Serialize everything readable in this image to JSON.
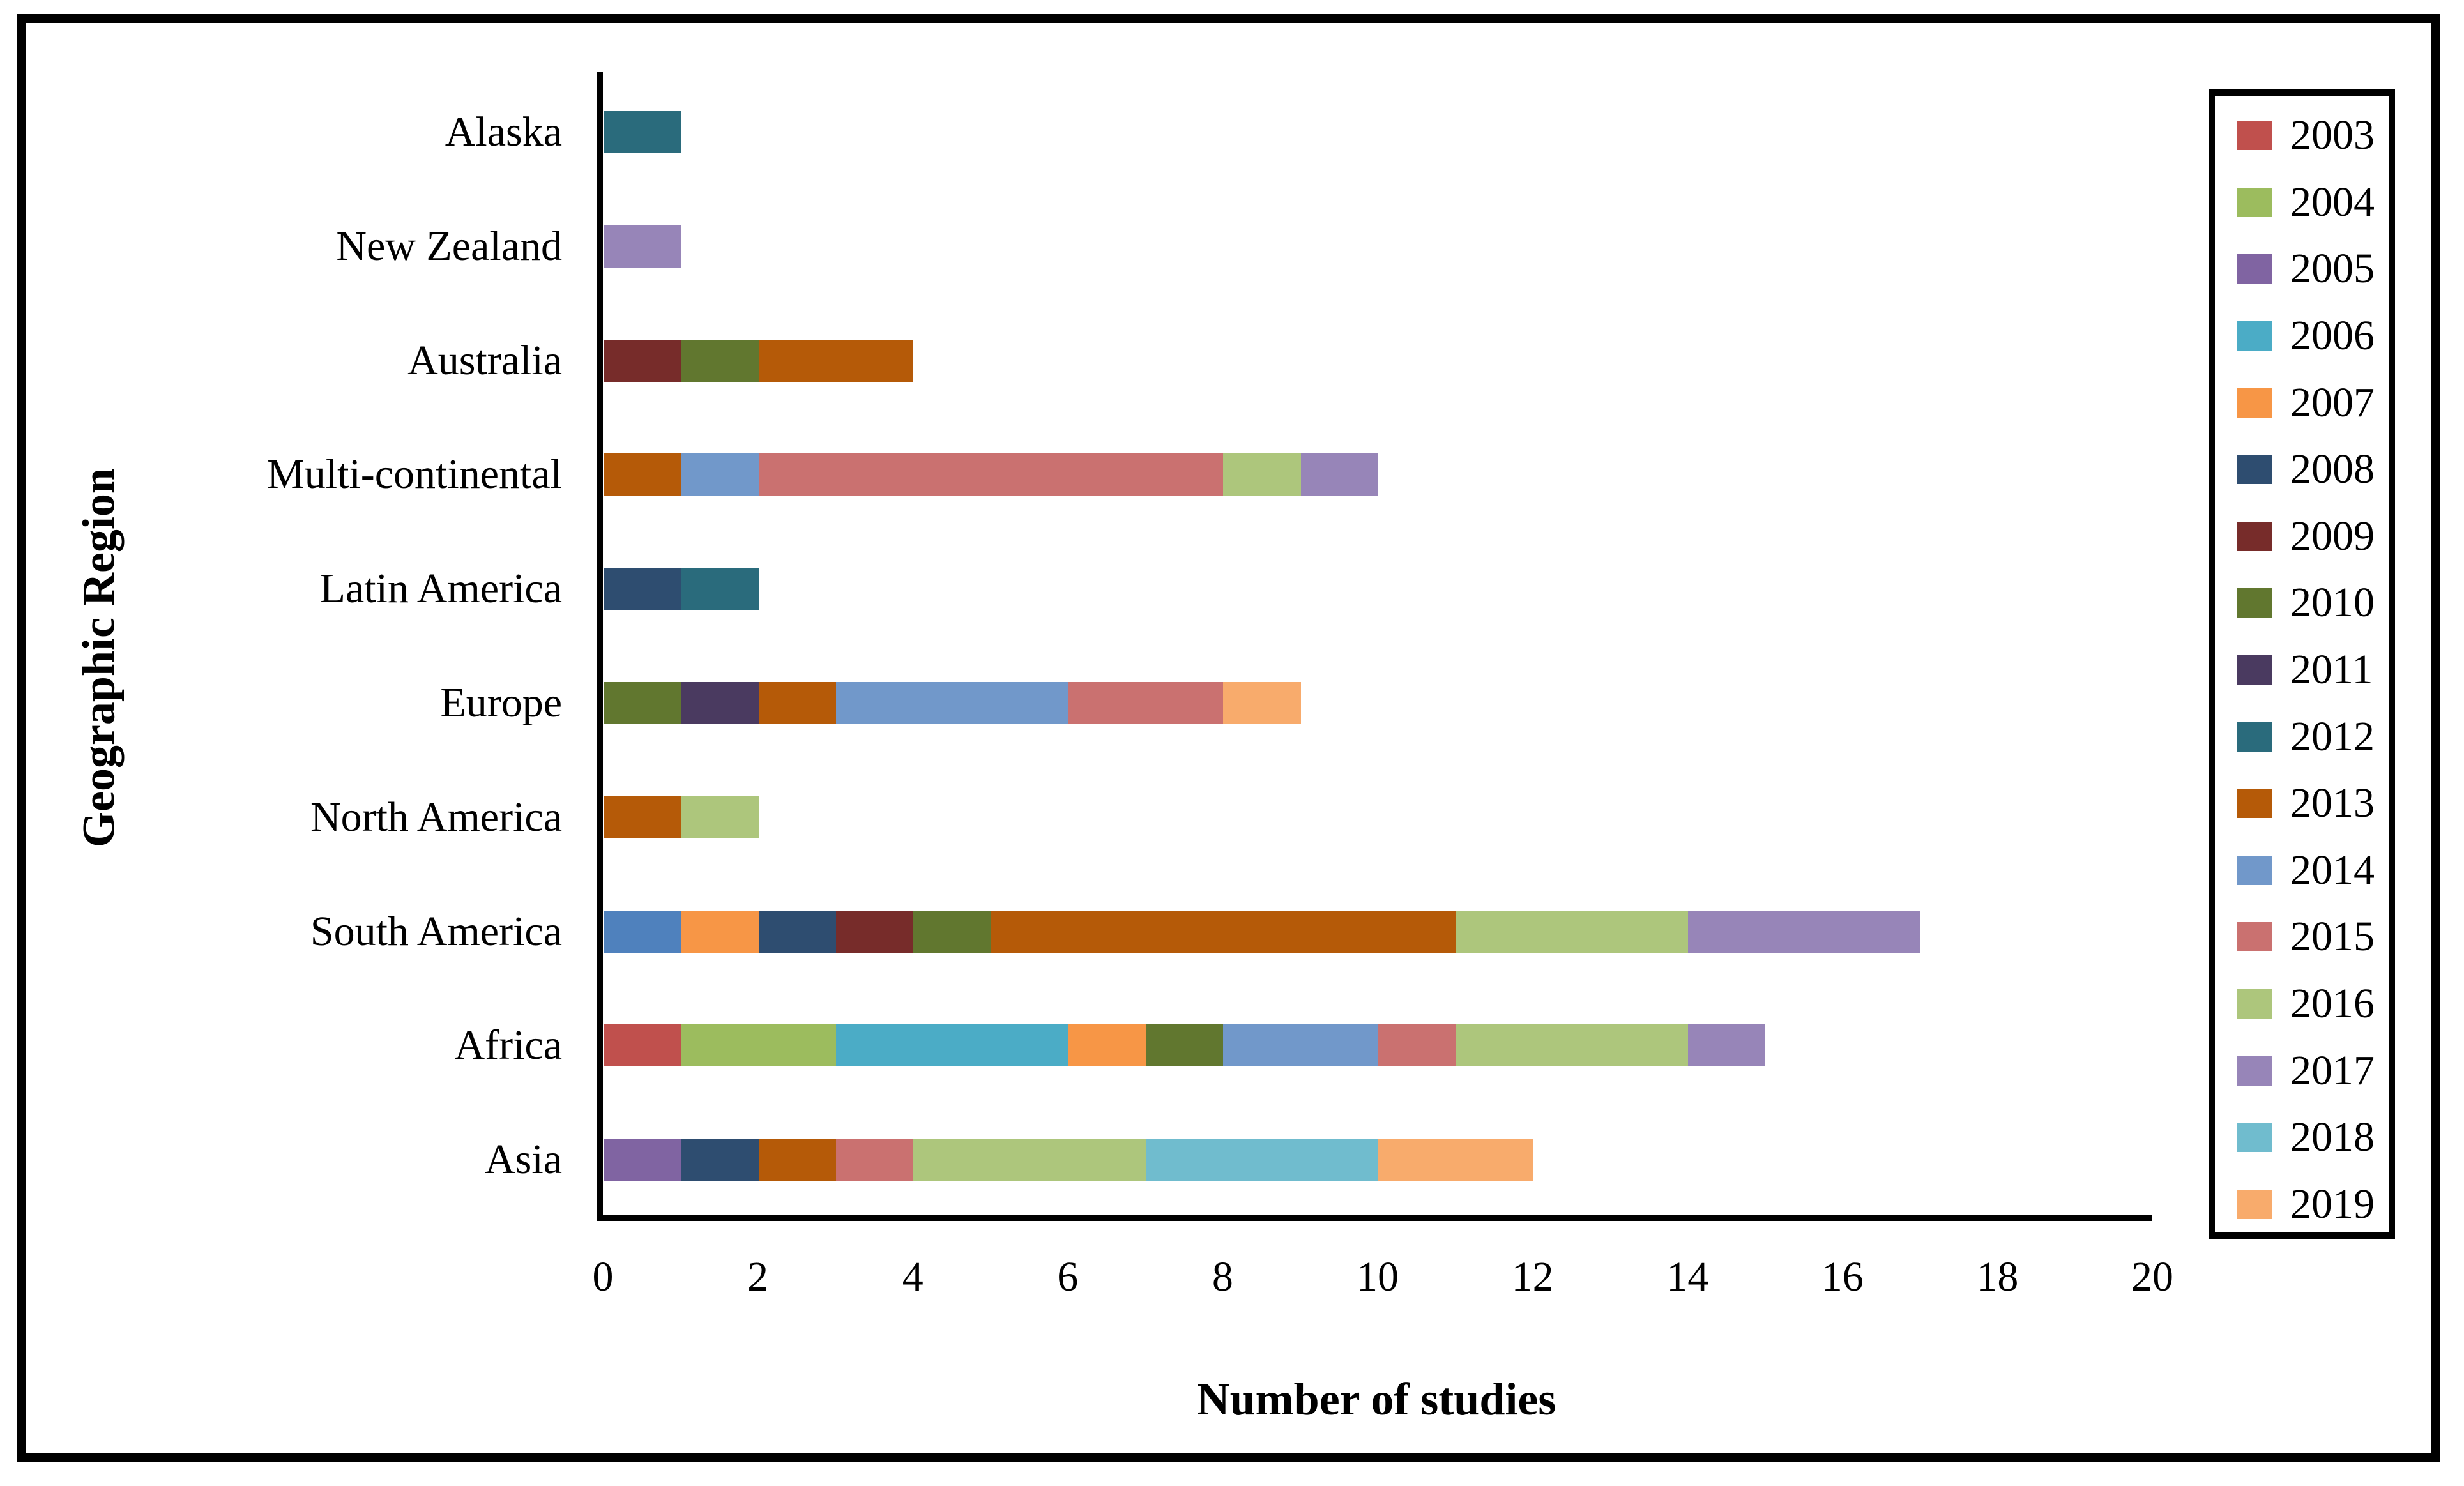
{
  "chart_data": {
    "type": "bar",
    "orientation": "horizontal",
    "stacked": true,
    "xlabel": "Number of studies",
    "ylabel": "Geographic Region",
    "xlim": [
      0,
      20
    ],
    "xticks": [
      0,
      2,
      4,
      6,
      8,
      10,
      12,
      14,
      16,
      18,
      20
    ],
    "grid": false,
    "legend_position": "right-outside-box",
    "legend_years": [
      "2003",
      "2004",
      "2005",
      "2006",
      "2007",
      "2008",
      "2009",
      "2010",
      "2011",
      "2012",
      "2013",
      "2014",
      "2015",
      "2016",
      "2017",
      "2018",
      "2019"
    ],
    "palette": {
      "2003": "#c0504d",
      "2004": "#9cbc5e",
      "2005": "#8064a2",
      "2006": "#4bacc6",
      "2007": "#f79646",
      "2008": "#2e4d70",
      "2009": "#772c2a",
      "2010": "#61772f",
      "2011": "#4a3a60",
      "2012": "#2a6b7c",
      "2013": "#b55a08",
      "2014": "#7198ca",
      "2015": "#ca7170",
      "2016": "#adc67c",
      "2017": "#9785b8",
      "2018": "#70bcce",
      "2019": "#f8ab6c"
    },
    "categories": [
      "Alaska",
      "New Zealand",
      "Australia",
      "Multi-continental",
      "Latin America",
      "Europe",
      "North America",
      "South America",
      "Africa",
      "Asia"
    ],
    "bars": [
      {
        "region": "Alaska",
        "total": 1,
        "segments": [
          {
            "year": "2012",
            "value": 1
          }
        ]
      },
      {
        "region": "New Zealand",
        "total": 1,
        "segments": [
          {
            "year": "2017",
            "value": 1
          }
        ]
      },
      {
        "region": "Australia",
        "total": 4,
        "segments": [
          {
            "year": "2009",
            "value": 1
          },
          {
            "year": "2010",
            "value": 1
          },
          {
            "year": "2013",
            "value": 2
          }
        ]
      },
      {
        "region": "Multi-continental",
        "total": 10,
        "segments": [
          {
            "year": "2013",
            "value": 1
          },
          {
            "year": "2014",
            "value": 1
          },
          {
            "year": "2015",
            "value": 6
          },
          {
            "year": "2016",
            "value": 1
          },
          {
            "year": "2017",
            "value": 1
          }
        ]
      },
      {
        "region": "Latin America",
        "total": 2,
        "segments": [
          {
            "year": "2008",
            "value": 1
          },
          {
            "year": "2012",
            "value": 1
          }
        ]
      },
      {
        "region": "Europe",
        "total": 9,
        "segments": [
          {
            "year": "2010",
            "value": 1
          },
          {
            "year": "2011",
            "value": 1
          },
          {
            "year": "2013",
            "value": 1
          },
          {
            "year": "2014",
            "value": 3
          },
          {
            "year": "2015",
            "value": 2
          },
          {
            "year": "2019",
            "value": 1
          }
        ]
      },
      {
        "region": "North America",
        "total": 2,
        "segments": [
          {
            "year": "2013",
            "value": 1
          },
          {
            "year": "2016",
            "value": 1
          }
        ]
      },
      {
        "region": "South America",
        "total": 17,
        "segments": [
          {
            "year": "2014",
            "value": 1,
            "color": "#4f81bd"
          },
          {
            "year": "2007",
            "value": 1
          },
          {
            "year": "2008",
            "value": 1
          },
          {
            "year": "2009",
            "value": 1
          },
          {
            "year": "2010",
            "value": 1
          },
          {
            "year": "2013",
            "value": 6
          },
          {
            "year": "2016",
            "value": 3
          },
          {
            "year": "2017",
            "value": 3
          }
        ]
      },
      {
        "region": "Africa",
        "total": 15,
        "segments": [
          {
            "year": "2003",
            "value": 1
          },
          {
            "year": "2004",
            "value": 2
          },
          {
            "year": "2006",
            "value": 3
          },
          {
            "year": "2007",
            "value": 1
          },
          {
            "year": "2010",
            "value": 1
          },
          {
            "year": "2014",
            "value": 2
          },
          {
            "year": "2015",
            "value": 1
          },
          {
            "year": "2016",
            "value": 3
          },
          {
            "year": "2017",
            "value": 1
          }
        ]
      },
      {
        "region": "Asia",
        "total": 12,
        "segments": [
          {
            "year": "2005",
            "value": 1
          },
          {
            "year": "2008",
            "value": 1
          },
          {
            "year": "2013",
            "value": 1
          },
          {
            "year": "2015",
            "value": 1
          },
          {
            "year": "2016",
            "value": 3
          },
          {
            "year": "2018",
            "value": 3
          },
          {
            "year": "2019",
            "value": 2
          }
        ]
      }
    ]
  }
}
